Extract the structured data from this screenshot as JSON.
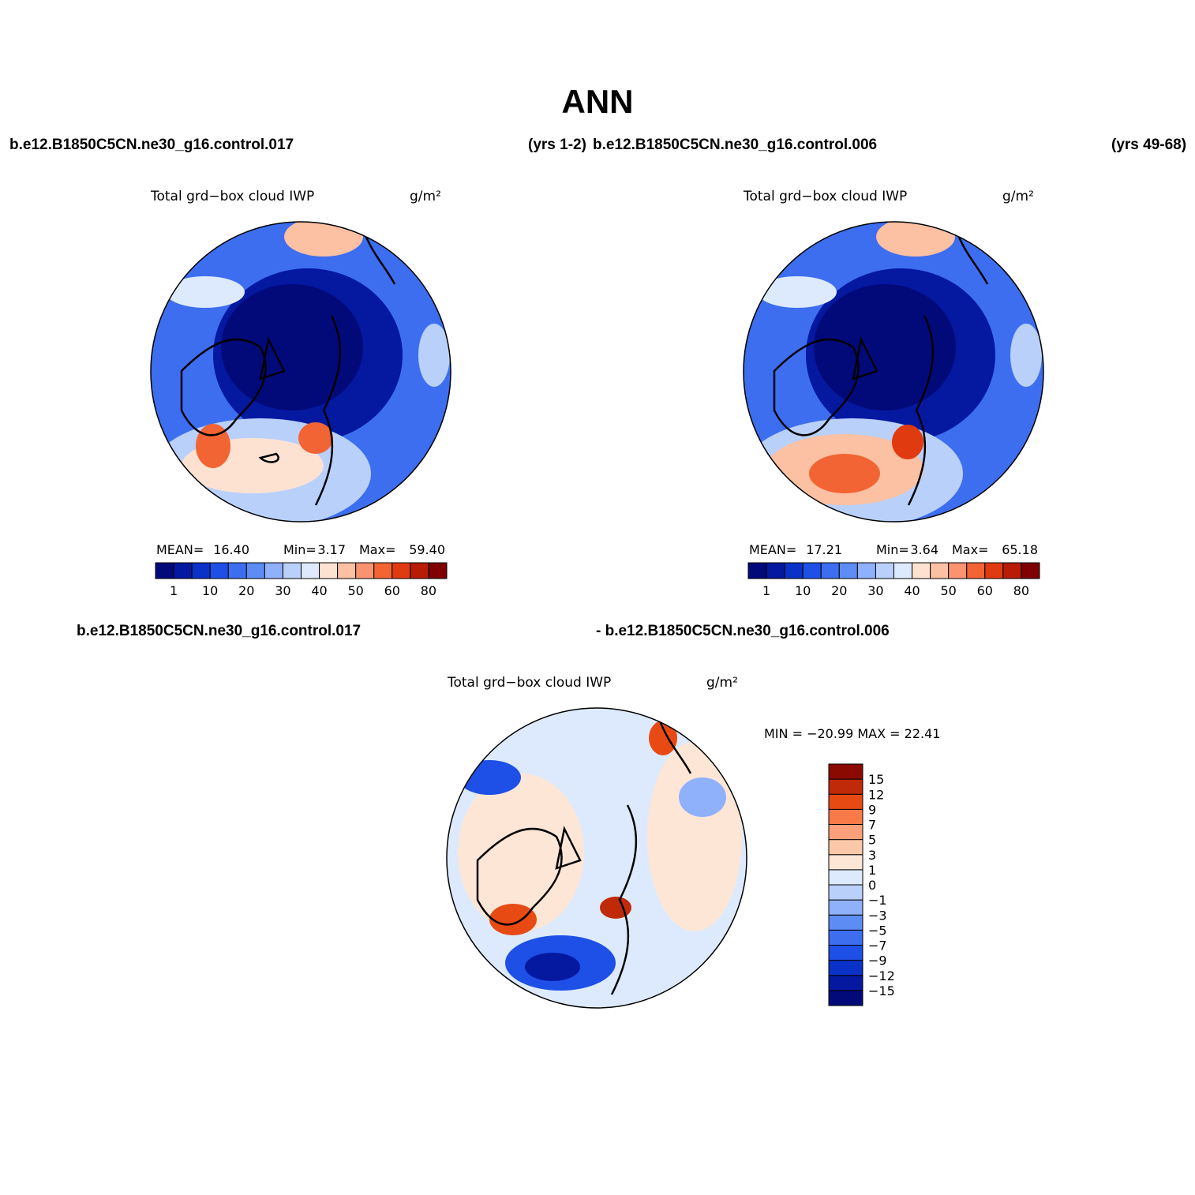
{
  "title": "ANN",
  "panels": [
    {
      "case_left": "b.e12.B1850C5CN.ne30_g16.control.017",
      "case_right": "(yrs 1-2)",
      "variable": "Total grd−box cloud IWP",
      "units": "g/m²",
      "stats": [
        {
          "label": "MEAN=",
          "value": "16.40"
        },
        {
          "label": "Min=",
          "value": "3.17"
        },
        {
          "label": "Max=",
          "value": "59.40"
        }
      ],
      "colorbar": {
        "colors": [
          "#020a7a",
          "#0418a0",
          "#0a32c8",
          "#1e4fe6",
          "#3d6ef0",
          "#5d8cf5",
          "#8fb0fa",
          "#b9d0fb",
          "#ddeafd",
          "#fde2d2",
          "#fcc0a2",
          "#f99370",
          "#f26434",
          "#e03a10",
          "#b81c06",
          "#7f0000"
        ],
        "ticks": [
          1,
          10,
          20,
          30,
          40,
          50,
          60,
          80
        ]
      }
    },
    {
      "case_left": "b.e12.B1850C5CN.ne30_g16.control.006",
      "case_right": "(yrs 49-68)",
      "variable": "Total grd−box cloud IWP",
      "units": "g/m²",
      "stats": [
        {
          "label": "MEAN=",
          "value": "17.21"
        },
        {
          "label": "Min=",
          "value": "3.64"
        },
        {
          "label": "Max=",
          "value": "65.18"
        }
      ],
      "colorbar": {
        "colors": [
          "#020a7a",
          "#0418a0",
          "#0a32c8",
          "#1e4fe6",
          "#3d6ef0",
          "#5d8cf5",
          "#8fb0fa",
          "#b9d0fb",
          "#ddeafd",
          "#fde2d2",
          "#fcc0a2",
          "#f99370",
          "#f26434",
          "#e03a10",
          "#b81c06",
          "#7f0000"
        ],
        "ticks": [
          1,
          10,
          20,
          30,
          40,
          50,
          60,
          80
        ]
      }
    }
  ],
  "difference": {
    "case_left": "b.e12.B1850C5CN.ne30_g16.control.017",
    "case_right": "- b.e12.B1850C5CN.ne30_g16.control.006",
    "variable": "Total grd−box cloud IWP",
    "units": "g/m²",
    "stats": "MIN = −20.99 MAX =  22.41",
    "colorbar": {
      "colors": [
        "#020a7a",
        "#0418a0",
        "#0a32c8",
        "#1e4fe6",
        "#3d6ef0",
        "#5d8cf5",
        "#8fb0fa",
        "#b9d0fb",
        "#ddeafd",
        "#fde6d6",
        "#fcc8aa",
        "#fba07a",
        "#f87a48",
        "#e84a14",
        "#c02a08",
        "#8a0a02"
      ],
      "ticks": [
        {
          "value": -15,
          "label": "−15"
        },
        {
          "value": -12,
          "label": "−12"
        },
        {
          "value": -9,
          "label": "−9"
        },
        {
          "value": -7,
          "label": "−7"
        },
        {
          "value": -5,
          "label": "−5"
        },
        {
          "value": -3,
          "label": "−3"
        },
        {
          "value": -1,
          "label": "−1"
        },
        0,
        1,
        3,
        5,
        7,
        9,
        12,
        15
      ]
    }
  }
}
